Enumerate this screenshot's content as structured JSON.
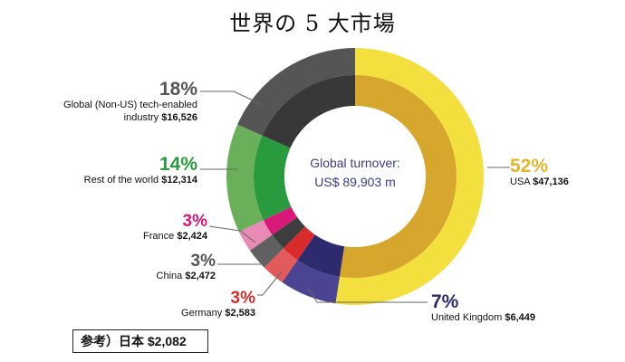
{
  "title": "世界の 5 大市場",
  "center": {
    "line1": "Global turnover:",
    "line2": "US$ 89,903 m"
  },
  "note": "参考）日本 $2,082",
  "chart_data": {
    "type": "pie",
    "title": "世界の 5 大市場",
    "unit": "US$ m",
    "total": 89903,
    "slices": [
      {
        "name": "USA",
        "percent": "52%",
        "value_label": "$47,136",
        "value": 47136,
        "outer": "#f3df3e",
        "inner": "#d7a72d",
        "pct_color": "#e2b72e"
      },
      {
        "name": "United Kingdom",
        "percent": "7%",
        "value_label": "$6,449",
        "value": 6449,
        "outer": "#4a4493",
        "inner": "#2d2a6e",
        "pct_color": "#2d2a6e"
      },
      {
        "name": "Germany",
        "percent": "3%",
        "value_label": "$2,583",
        "value": 2583,
        "outer": "#e35a5c",
        "inner": "#d92a2c",
        "pct_color": "#d92a2c"
      },
      {
        "name": "China",
        "percent": "3%",
        "value_label": "$2,472",
        "value": 2472,
        "outer": "#606060",
        "inner": "#3d3d3d",
        "pct_color": "#555555"
      },
      {
        "name": "France",
        "percent": "3%",
        "value_label": "$2,424",
        "value": 2424,
        "outer": "#ea8ab7",
        "inner": "#d9197a",
        "pct_color": "#d9197a"
      },
      {
        "name": "Rest of the world",
        "percent": "14%",
        "value_label": "$12,314",
        "value": 12314,
        "outer": "#6ab05a",
        "inner": "#2a9a3f",
        "pct_color": "#2a9a3f"
      },
      {
        "name": "Global (Non-US) tech-enabled industry",
        "percent": "18%",
        "value_label": "$16,526",
        "value": 16526,
        "outer": "#555555",
        "inner": "#383838",
        "pct_color": "#555555"
      }
    ]
  }
}
